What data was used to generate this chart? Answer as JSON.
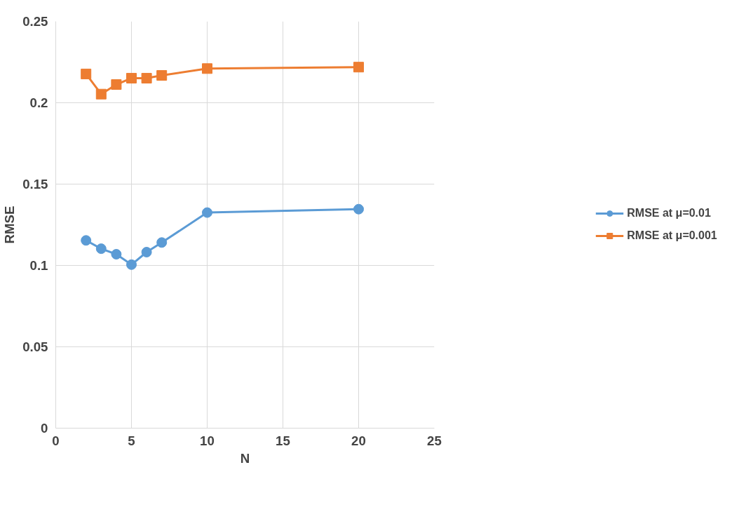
{
  "chart_data": {
    "type": "line",
    "xlabel": "N",
    "ylabel": "RMSE",
    "x": [
      2,
      3,
      4,
      5,
      6,
      7,
      10,
      20
    ],
    "series": [
      {
        "name": "RMSE at μ=0.01",
        "color": "#5b9bd5",
        "marker": "circle",
        "values": [
          0.1154,
          0.1103,
          0.1069,
          0.1005,
          0.1082,
          0.1141,
          0.1325,
          0.1346
        ]
      },
      {
        "name": "RMSE at μ=0.001",
        "color": "#ed7d31",
        "marker": "square",
        "values": [
          0.2177,
          0.2053,
          0.2112,
          0.2151,
          0.2151,
          0.2168,
          0.221,
          0.2219
        ]
      }
    ],
    "xlim": [
      0,
      25
    ],
    "xticks": [
      0,
      5,
      10,
      15,
      20,
      25
    ],
    "ylim": [
      0,
      0.25
    ],
    "yticks": [
      0,
      0.05,
      0.1,
      0.15,
      0.2,
      0.25
    ],
    "grid": true,
    "legend": "right"
  }
}
